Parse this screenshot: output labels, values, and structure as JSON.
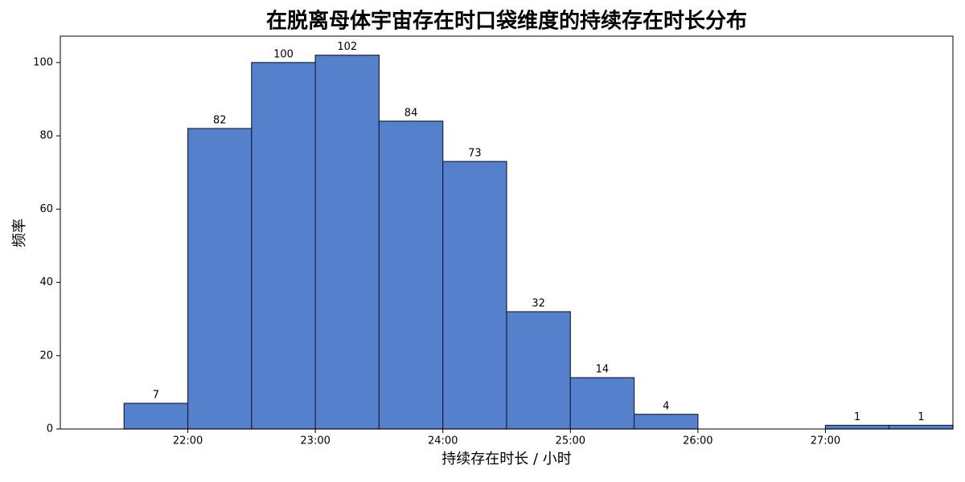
{
  "chart_data": {
    "type": "histogram",
    "title": "在脱离母体宇宙存在时口袋维度的持续存在时长分布",
    "x_label": "持续存在时长 / 小时",
    "y_label": "频率",
    "bins": [
      21.5,
      22,
      22.5,
      23,
      23.5,
      24,
      24.5,
      25,
      25.5,
      26,
      26.5,
      27,
      27.5,
      28
    ],
    "values": [
      7,
      82,
      100,
      102,
      84,
      73,
      32,
      14,
      4,
      0,
      0,
      1,
      1
    ],
    "color": "#5580cc",
    "edge_color": "#1a2540",
    "xlim": [
      21.0,
      28.0
    ],
    "xticks": [
      {
        "value": 22,
        "label": "22:00"
      },
      {
        "value": 23,
        "label": "23:00"
      },
      {
        "value": 24,
        "label": "24:00"
      },
      {
        "value": 25,
        "label": "25:00"
      },
      {
        "value": 26,
        "label": "26:00"
      },
      {
        "value": 27,
        "label": "27:00"
      }
    ],
    "ylim": [
      0,
      107.2
    ],
    "yticks": [
      0,
      20,
      40,
      60,
      80,
      100
    ]
  }
}
